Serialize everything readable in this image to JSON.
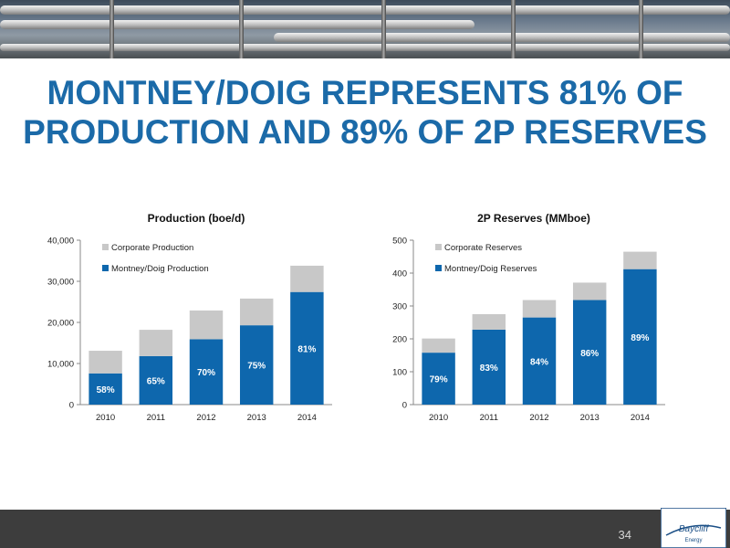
{
  "slide": {
    "title": "MONTNEY/DOIG REPRESENTS 81% OF PRODUCTION AND 89% OF 2P RESERVES",
    "page_number": "34",
    "logo_text": "Baycliff Energy"
  },
  "colors": {
    "title": "#1b6aa8",
    "primary_series": "#0e67ad",
    "secondary_series": "#c8c8c8",
    "footer": "#3d3d3d"
  },
  "chart_data": [
    {
      "type": "bar",
      "stacked": true,
      "title": "Production (boe/d)",
      "categories": [
        "2010",
        "2011",
        "2012",
        "2013",
        "2014"
      ],
      "series": [
        {
          "name": "Montney/Doig Production",
          "values": [
            7600,
            11800,
            15900,
            19300,
            27400
          ]
        },
        {
          "name": "Corporate Production",
          "values": [
            5500,
            6400,
            7000,
            6500,
            6400
          ]
        }
      ],
      "data_labels": [
        "58%",
        "65%",
        "70%",
        "75%",
        "81%"
      ],
      "ylim": [
        0,
        40000
      ],
      "yticks": [
        0,
        10000,
        20000,
        30000,
        40000
      ],
      "ytick_labels": [
        "0",
        "10,000",
        "20,000",
        "30,000",
        "40,000"
      ],
      "legend": "top-left",
      "grid": false
    },
    {
      "type": "bar",
      "stacked": true,
      "title": "2P Reserves (MMboe)",
      "categories": [
        "2010",
        "2011",
        "2012",
        "2013",
        "2014"
      ],
      "series": [
        {
          "name": "Montney/Doig Reserves",
          "values": [
            158,
            228,
            265,
            318,
            412
          ]
        },
        {
          "name": "Corporate Reserves",
          "values": [
            43,
            47,
            53,
            53,
            53
          ]
        }
      ],
      "data_labels": [
        "79%",
        "83%",
        "84%",
        "86%",
        "89%"
      ],
      "ylim": [
        0,
        500
      ],
      "yticks": [
        0,
        100,
        200,
        300,
        400,
        500
      ],
      "ytick_labels": [
        "0",
        "100",
        "200",
        "300",
        "400",
        "500"
      ],
      "legend": "top-left",
      "grid": false
    }
  ]
}
